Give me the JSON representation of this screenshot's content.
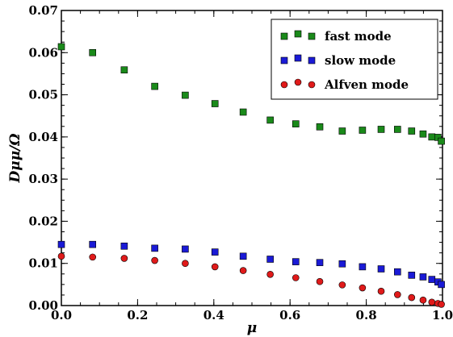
{
  "chart_data": {
    "type": "scatter",
    "xlabel": "μ",
    "ylabel": "Dμμ/Ω",
    "xlim": [
      0.0,
      1.0
    ],
    "ylim": [
      0.0,
      0.07
    ],
    "x_ticks": [
      "0.0",
      "0.2",
      "0.4",
      "0.6",
      "0.8",
      "1.0"
    ],
    "y_ticks": [
      "0.00",
      "0.01",
      "0.02",
      "0.03",
      "0.04",
      "0.05",
      "0.06",
      "0.07"
    ],
    "grid": false,
    "legend_position": "top-right",
    "series": [
      {
        "name": "fast mode",
        "marker": "square",
        "color": "#1a8a1a",
        "x": [
          0.0,
          0.082,
          0.165,
          0.245,
          0.325,
          0.403,
          0.477,
          0.548,
          0.615,
          0.678,
          0.737,
          0.79,
          0.839,
          0.882,
          0.919,
          0.949,
          0.972,
          0.988,
          0.997
        ],
        "y": [
          0.0614,
          0.06,
          0.0559,
          0.052,
          0.0499,
          0.0479,
          0.0459,
          0.044,
          0.0431,
          0.0424,
          0.0414,
          0.0416,
          0.0418,
          0.0418,
          0.0414,
          0.0407,
          0.04,
          0.0399,
          0.039
        ]
      },
      {
        "name": "slow mode",
        "marker": "square",
        "color": "#1a1ad6",
        "x": [
          0.0,
          0.082,
          0.165,
          0.245,
          0.325,
          0.403,
          0.477,
          0.548,
          0.615,
          0.678,
          0.737,
          0.79,
          0.839,
          0.882,
          0.919,
          0.949,
          0.972,
          0.988,
          0.997
        ],
        "y": [
          0.0145,
          0.0145,
          0.0141,
          0.0136,
          0.0134,
          0.0127,
          0.0117,
          0.011,
          0.0104,
          0.0102,
          0.0099,
          0.0092,
          0.0087,
          0.008,
          0.0072,
          0.0068,
          0.0062,
          0.0056,
          0.005
        ]
      },
      {
        "name": "Alfven mode",
        "marker": "circle",
        "color": "#e01a1a",
        "x": [
          0.0,
          0.082,
          0.165,
          0.245,
          0.325,
          0.403,
          0.477,
          0.548,
          0.615,
          0.678,
          0.737,
          0.79,
          0.839,
          0.882,
          0.919,
          0.949,
          0.972,
          0.988,
          0.997
        ],
        "y": [
          0.0117,
          0.0115,
          0.0112,
          0.0107,
          0.01,
          0.0092,
          0.0083,
          0.0074,
          0.0066,
          0.0057,
          0.0049,
          0.0042,
          0.0034,
          0.0026,
          0.0019,
          0.0013,
          0.0008,
          0.0005,
          0.0003
        ]
      }
    ]
  }
}
